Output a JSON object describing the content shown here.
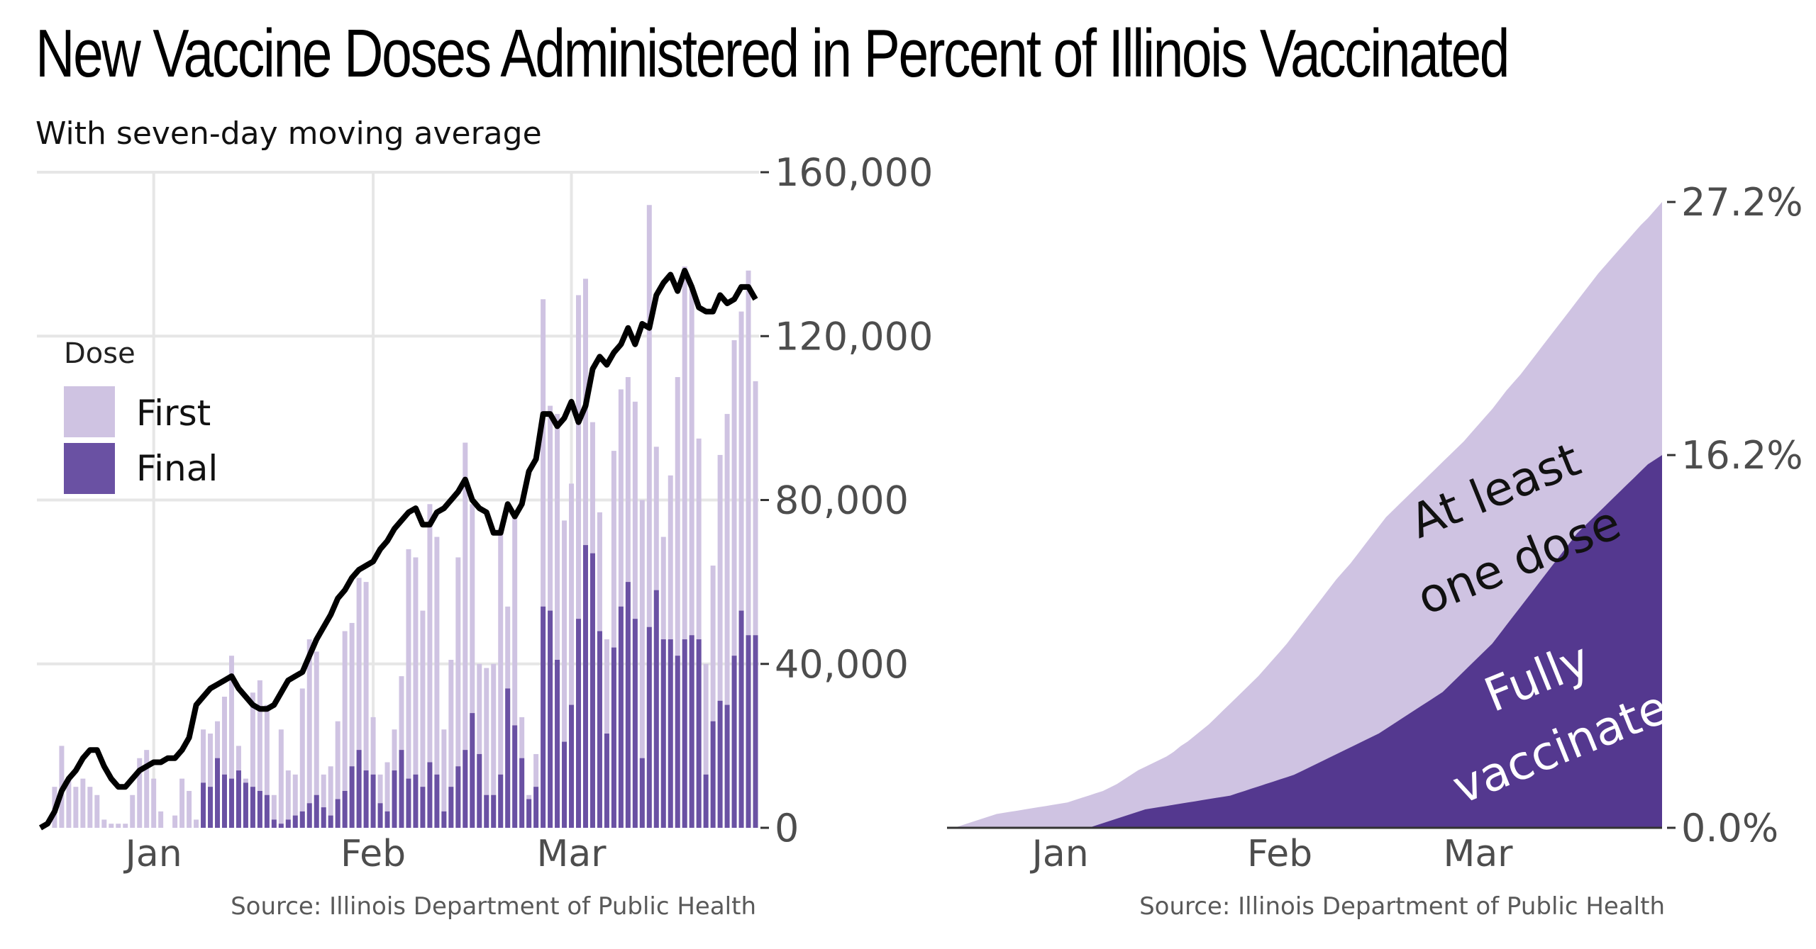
{
  "title": "New Vaccine Doses Administered in Percent of Illinois Vaccinated",
  "subtitle": "With seven-day moving average",
  "colors": {
    "first": "#cfc3e2",
    "final": "#6a51a3",
    "final_area": "#54388f",
    "average": "#000000",
    "grid": "#e6e6e6",
    "axis_text": "#4d4d4d",
    "source": "#595959"
  },
  "chart_data": [
    {
      "type": "bar",
      "stacked": true,
      "x_labels": [
        "Jan",
        "Feb",
        "Mar"
      ],
      "x_label_day_index": [
        16,
        47,
        75
      ],
      "ylim": [
        0,
        160000
      ],
      "yticks": [
        0,
        40000,
        80000,
        120000,
        160000
      ],
      "ytick_labels": [
        "0",
        "40,000",
        "80,000",
        "120,000",
        "160,000"
      ],
      "grid": true,
      "legend": {
        "title": "Dose",
        "position": "left",
        "entries": [
          "First",
          "Final"
        ]
      },
      "series": [
        {
          "name": "First",
          "stack": "total",
          "values": [
            0,
            0,
            10000,
            20000,
            12000,
            10000,
            12000,
            10000,
            8000,
            2000,
            1000,
            1000,
            1000,
            8000,
            17000,
            19000,
            12000,
            4000,
            0,
            3000,
            12000,
            9000,
            2000,
            24000,
            23000,
            26000,
            32000,
            42000,
            20000,
            12000,
            33000,
            36000,
            30000,
            8000,
            24000,
            14000,
            13000,
            34000,
            46000,
            43000,
            13000,
            15000,
            26000,
            48000,
            50000,
            61000,
            60000,
            27000,
            13000,
            16000,
            24000,
            37000,
            68000,
            66000,
            53000,
            79000,
            71000,
            24000,
            41000,
            66000,
            94000,
            79000,
            40000,
            39000,
            40000,
            73000,
            54000,
            77000,
            27000,
            8000,
            18000,
            129000,
            103000,
            101000,
            75000,
            84000,
            130000,
            134000,
            99000,
            77000,
            46000,
            92000,
            107000,
            110000,
            104000,
            80000,
            152000,
            93000,
            71000,
            86000,
            110000,
            137000,
            132000,
            95000,
            40000,
            64000,
            91000,
            101000,
            119000,
            126000,
            136000,
            109000
          ]
        },
        {
          "name": "Final",
          "stack": "total",
          "values": [
            0,
            0,
            0,
            0,
            0,
            0,
            0,
            0,
            0,
            0,
            0,
            0,
            0,
            0,
            0,
            0,
            0,
            0,
            0,
            0,
            0,
            0,
            0,
            11000,
            10000,
            17000,
            13000,
            12000,
            14000,
            11000,
            10000,
            9000,
            8000,
            2000,
            1000,
            2000,
            3000,
            4000,
            6000,
            8000,
            5000,
            3000,
            7000,
            9000,
            15000,
            19000,
            14000,
            13000,
            6000,
            4000,
            14000,
            19000,
            12000,
            13000,
            10000,
            16000,
            13000,
            4000,
            10000,
            15000,
            19000,
            28000,
            18000,
            8000,
            8000,
            13000,
            34000,
            25000,
            17000,
            7000,
            10000,
            54000,
            53000,
            41000,
            21000,
            30000,
            51000,
            69000,
            67000,
            48000,
            23000,
            44000,
            54000,
            60000,
            51000,
            17000,
            49000,
            58000,
            46000,
            46000,
            42000,
            46000,
            47000,
            46000,
            13000,
            26000,
            31000,
            30000,
            42000,
            53000,
            47000,
            47000
          ]
        },
        {
          "name": "seven-day moving average",
          "kind": "line",
          "values": [
            0,
            1000,
            4000,
            9000,
            12000,
            14000,
            17000,
            19000,
            19000,
            15000,
            12000,
            10000,
            10000,
            12000,
            14000,
            15000,
            16000,
            16000,
            17000,
            17000,
            19000,
            22000,
            30000,
            32000,
            34000,
            35000,
            36000,
            37000,
            34000,
            32000,
            30000,
            29000,
            29000,
            30000,
            33000,
            36000,
            37000,
            38000,
            42000,
            46000,
            49000,
            52000,
            56000,
            58000,
            61000,
            63000,
            64000,
            65000,
            68000,
            70000,
            73000,
            75000,
            77000,
            78000,
            74000,
            74000,
            77000,
            78000,
            80000,
            82000,
            85000,
            80000,
            78000,
            77000,
            72000,
            72000,
            79000,
            76000,
            79000,
            87000,
            90000,
            101000,
            101000,
            98000,
            100000,
            104000,
            99000,
            103000,
            112000,
            115000,
            113000,
            116000,
            118000,
            122000,
            118000,
            123000,
            122000,
            130000,
            133000,
            135000,
            131000,
            136000,
            132000,
            127000,
            126000,
            126000,
            130000,
            128000,
            129000,
            132000,
            132000,
            129000
          ]
        }
      ],
      "source": "Source: Illinois Department of Public Health"
    },
    {
      "type": "area",
      "stacked": false,
      "x_labels": [
        "Jan",
        "Feb",
        "Mar"
      ],
      "x_label_day_index": [
        16,
        47,
        75
      ],
      "ylim": [
        0,
        27.2
      ],
      "yticks": [
        0,
        16.2,
        27.2
      ],
      "ytick_labels": [
        "0.0%",
        "16.2%",
        "27.2%"
      ],
      "grid": false,
      "annotations": [
        "At least",
        "one dose",
        "Fully",
        "vaccinated"
      ],
      "series": [
        {
          "name": "At least one dose",
          "values": [
            0,
            0,
            0.1,
            0.2,
            0.3,
            0.4,
            0.5,
            0.6,
            0.65,
            0.7,
            0.75,
            0.8,
            0.85,
            0.9,
            0.95,
            1.0,
            1.05,
            1.1,
            1.2,
            1.3,
            1.4,
            1.5,
            1.6,
            1.75,
            1.9,
            2.1,
            2.3,
            2.5,
            2.65,
            2.8,
            2.95,
            3.1,
            3.3,
            3.55,
            3.75,
            4.0,
            4.25,
            4.5,
            4.8,
            5.1,
            5.4,
            5.7,
            6.0,
            6.3,
            6.6,
            6.95,
            7.3,
            7.65,
            8.0,
            8.4,
            8.8,
            9.2,
            9.6,
            10.0,
            10.4,
            10.8,
            11.15,
            11.5,
            11.9,
            12.3,
            12.7,
            13.1,
            13.5,
            13.8,
            14.1,
            14.4,
            14.7,
            15.0,
            15.3,
            15.6,
            15.9,
            16.2,
            16.5,
            16.8,
            17.15,
            17.5,
            17.85,
            18.2,
            18.6,
            19.0,
            19.35,
            19.7,
            20.1,
            20.5,
            20.9,
            21.3,
            21.7,
            22.1,
            22.5,
            22.9,
            23.3,
            23.7,
            24.1,
            24.45,
            24.8,
            25.15,
            25.5,
            25.85,
            26.2,
            26.5,
            26.85,
            27.2
          ]
        },
        {
          "name": "Fully vaccinated",
          "values": [
            0,
            0,
            0,
            0,
            0,
            0,
            0,
            0,
            0,
            0,
            0,
            0,
            0,
            0,
            0,
            0,
            0,
            0,
            0,
            0,
            0,
            0.1,
            0.2,
            0.3,
            0.4,
            0.5,
            0.6,
            0.7,
            0.8,
            0.85,
            0.9,
            0.95,
            1.0,
            1.05,
            1.1,
            1.15,
            1.2,
            1.25,
            1.3,
            1.35,
            1.4,
            1.5,
            1.6,
            1.7,
            1.8,
            1.9,
            2.0,
            2.1,
            2.2,
            2.3,
            2.45,
            2.6,
            2.75,
            2.9,
            3.05,
            3.2,
            3.35,
            3.5,
            3.65,
            3.8,
            3.95,
            4.1,
            4.3,
            4.5,
            4.7,
            4.9,
            5.1,
            5.3,
            5.5,
            5.7,
            5.9,
            6.2,
            6.5,
            6.8,
            7.1,
            7.4,
            7.7,
            8.0,
            8.4,
            8.8,
            9.2,
            9.6,
            10.0,
            10.4,
            10.8,
            11.2,
            11.6,
            12.0,
            12.4,
            12.8,
            13.1,
            13.4,
            13.7,
            14.0,
            14.3,
            14.6,
            14.9,
            15.2,
            15.5,
            15.8,
            16.0,
            16.2
          ]
        }
      ],
      "source": "Source: Illinois Department of Public Health"
    }
  ]
}
